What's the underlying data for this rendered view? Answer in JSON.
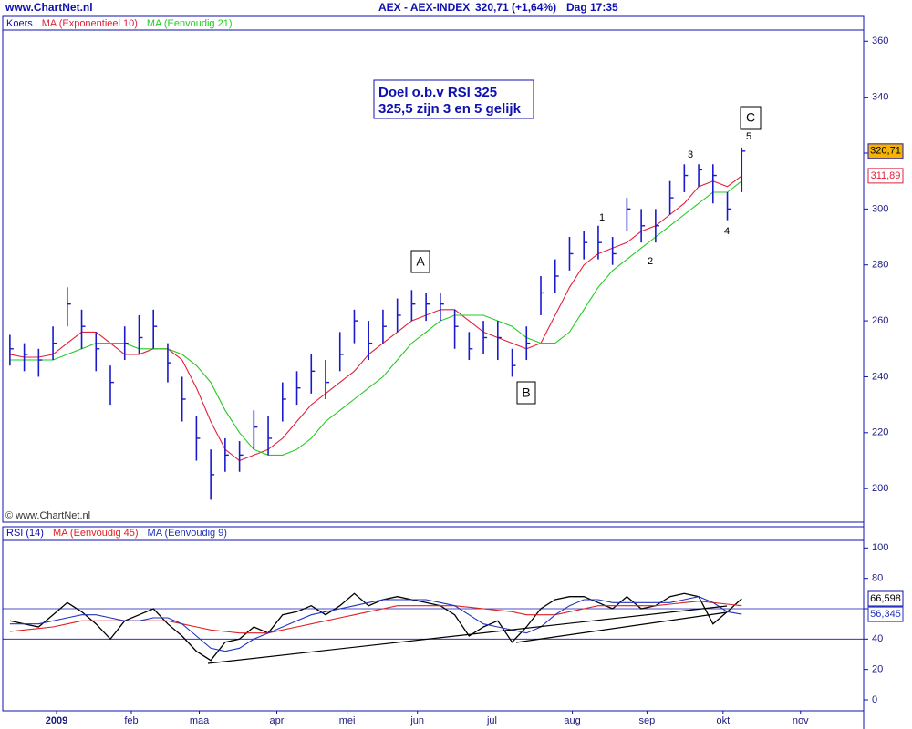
{
  "header": {
    "site": "www.ChartNet.nl",
    "copyright": "© www.ChartNet.nl"
  },
  "annotations": {
    "note": [
      "Doel o.b.v RSI 325",
      "325,5 zijn 3 en 5 gelijk"
    ],
    "waves": [
      "A",
      "B",
      "C",
      "1",
      "2",
      "3",
      "4",
      "5"
    ]
  },
  "chart_data": [
    {
      "type": "ohlc",
      "title": "AEX - AEX-INDEX",
      "subtitle": "320,71 (+1,64%)",
      "timeframe": "Dag 17:35",
      "x": [
        0,
        1,
        2,
        3,
        4,
        5,
        6,
        7,
        8,
        9,
        10,
        11,
        12,
        13,
        14,
        15,
        16,
        17,
        18,
        19,
        20,
        21,
        22,
        23,
        24,
        25,
        26,
        27,
        28,
        29,
        30,
        31,
        32,
        33,
        34,
        35,
        36,
        37,
        38,
        39,
        40,
        41,
        42,
        43,
        44,
        45,
        46,
        47,
        48,
        49,
        50,
        51
      ],
      "xlim": [
        -0.5,
        59.5
      ],
      "xticks": [
        {
          "value": 3.25,
          "label": "2009"
        },
        {
          "value": 8.46,
          "label": "feb"
        },
        {
          "value": 13.2,
          "label": "maa"
        },
        {
          "value": 18.6,
          "label": "apr"
        },
        {
          "value": 23.5,
          "label": "mei"
        },
        {
          "value": 28.4,
          "label": "jun"
        },
        {
          "value": 33.6,
          "label": "jul"
        },
        {
          "value": 39.2,
          "label": "aug"
        },
        {
          "value": 44.4,
          "label": "sep"
        },
        {
          "value": 49.7,
          "label": "okt"
        },
        {
          "value": 55.1,
          "label": "nov"
        }
      ],
      "ylim": [
        188,
        364
      ],
      "yticks": [
        200,
        220,
        240,
        260,
        280,
        300,
        320,
        340,
        360
      ],
      "series": [
        {
          "name": "Koers",
          "color": "#1a1acc",
          "values": [
            250,
            248,
            246,
            252,
            266,
            258,
            250,
            238,
            252,
            254,
            258,
            245,
            232,
            218,
            205,
            212,
            212,
            222,
            218,
            232,
            236,
            242,
            238,
            248,
            260,
            252,
            258,
            262,
            266,
            266,
            266,
            258,
            250,
            254,
            254,
            244,
            252,
            270,
            276,
            284,
            288,
            288,
            284,
            300,
            294,
            294,
            304,
            312,
            314,
            312,
            300,
            320.71
          ],
          "high": [
            255,
            252,
            250,
            258,
            272,
            264,
            256,
            244,
            258,
            262,
            264,
            252,
            240,
            226,
            214,
            218,
            217,
            228,
            226,
            238,
            242,
            248,
            246,
            256,
            264,
            260,
            264,
            268,
            271,
            270,
            270,
            264,
            256,
            260,
            260,
            250,
            258,
            276,
            282,
            290,
            292,
            294,
            290,
            304,
            300,
            300,
            310,
            316,
            316,
            316,
            306,
            322
          ],
          "low": [
            244,
            242,
            240,
            246,
            258,
            250,
            242,
            230,
            246,
            248,
            250,
            238,
            224,
            210,
            196,
            206,
            206,
            214,
            212,
            224,
            230,
            234,
            232,
            242,
            252,
            246,
            252,
            256,
            260,
            260,
            260,
            250,
            246,
            248,
            246,
            240,
            246,
            262,
            270,
            278,
            282,
            282,
            280,
            292,
            288,
            288,
            298,
            306,
            308,
            302,
            296,
            306
          ],
          "value_labels": [
            null,
            null,
            null,
            null,
            null,
            null,
            null,
            null,
            null,
            null,
            null,
            null,
            null,
            null,
            null,
            null,
            null,
            null,
            null,
            null,
            null,
            null,
            null,
            null,
            null,
            null,
            null,
            null,
            null,
            null,
            null,
            null,
            null,
            null,
            null,
            null,
            null,
            null,
            null,
            null,
            null,
            null,
            null,
            null,
            null,
            null,
            null,
            null,
            null,
            null,
            null,
            "320,71"
          ],
          "tag_fill": "#f5b400"
        },
        {
          "name": "MA (Exponentieel 10)",
          "color": "#e0203a",
          "values": [
            248,
            247,
            247,
            248,
            252,
            256,
            256,
            252,
            248,
            248,
            250,
            250,
            246,
            236,
            224,
            214,
            210,
            212,
            214,
            218,
            224,
            230,
            234,
            238,
            242,
            248,
            252,
            256,
            260,
            262,
            264,
            264,
            260,
            256,
            254,
            252,
            250,
            252,
            262,
            272,
            280,
            284,
            286,
            288,
            292,
            294,
            298,
            302,
            308,
            310,
            308,
            311.89
          ],
          "value_labels": [
            null,
            null,
            null,
            null,
            null,
            null,
            null,
            null,
            null,
            null,
            null,
            null,
            null,
            null,
            null,
            null,
            null,
            null,
            null,
            null,
            null,
            null,
            null,
            null,
            null,
            null,
            null,
            null,
            null,
            null,
            null,
            null,
            null,
            null,
            null,
            null,
            null,
            null,
            null,
            null,
            null,
            null,
            null,
            null,
            null,
            null,
            null,
            null,
            null,
            null,
            null,
            "311,89"
          ],
          "tag_fill": "#ffffff"
        },
        {
          "name": "MA (Eenvoudig 21)",
          "color": "#22cc22",
          "values": [
            246,
            246,
            246,
            246,
            248,
            250,
            252,
            252,
            252,
            250,
            250,
            250,
            248,
            244,
            238,
            228,
            220,
            214,
            212,
            212,
            214,
            218,
            224,
            228,
            232,
            236,
            240,
            246,
            252,
            256,
            260,
            262,
            262,
            262,
            260,
            258,
            254,
            252,
            252,
            256,
            264,
            272,
            278,
            282,
            286,
            290,
            294,
            298,
            302,
            306,
            306,
            310
          ]
        }
      ]
    },
    {
      "type": "line",
      "ylim": [
        -6,
        105
      ],
      "yticks": [
        0,
        20,
        40,
        60,
        80,
        100
      ],
      "levels": [
        60,
        40
      ],
      "series": [
        {
          "name": "RSI (14)",
          "color": "#000000",
          "values": [
            52,
            50,
            48,
            56,
            64,
            58,
            50,
            40,
            52,
            56,
            60,
            50,
            42,
            32,
            26,
            38,
            40,
            48,
            44,
            56,
            58,
            62,
            56,
            62,
            70,
            62,
            66,
            68,
            66,
            64,
            62,
            56,
            42,
            48,
            52,
            38,
            48,
            60,
            66,
            68,
            68,
            64,
            60,
            68,
            60,
            62,
            68,
            70,
            68,
            50,
            58,
            66.598
          ],
          "value_labels": [
            null,
            null,
            null,
            null,
            null,
            null,
            null,
            null,
            null,
            null,
            null,
            null,
            null,
            null,
            null,
            null,
            null,
            null,
            null,
            null,
            null,
            null,
            null,
            null,
            null,
            null,
            null,
            null,
            null,
            null,
            null,
            null,
            null,
            null,
            null,
            null,
            null,
            null,
            null,
            null,
            null,
            null,
            null,
            null,
            null,
            null,
            null,
            null,
            null,
            null,
            null,
            "66,598"
          ],
          "tag_fill": "#ffffff"
        },
        {
          "name": "MA (Eenvoudig 45)",
          "color": "#e02020",
          "values": [
            45,
            46,
            47,
            48,
            50,
            52,
            52,
            52,
            52,
            52,
            52,
            52,
            50,
            48,
            46,
            45,
            44,
            44,
            44,
            46,
            48,
            50,
            52,
            54,
            56,
            58,
            60,
            62,
            62,
            62,
            62,
            62,
            61,
            60,
            59,
            58,
            56,
            56,
            56,
            58,
            60,
            62,
            62,
            62,
            62,
            62,
            63,
            64,
            65,
            64,
            63,
            62
          ]
        },
        {
          "name": "MA (Eenvoudig 9)",
          "color": "#2233bb",
          "values": [
            50,
            50,
            50,
            52,
            54,
            56,
            56,
            54,
            52,
            52,
            54,
            54,
            50,
            42,
            34,
            32,
            34,
            40,
            44,
            48,
            52,
            56,
            58,
            60,
            62,
            64,
            66,
            66,
            66,
            66,
            64,
            62,
            56,
            50,
            48,
            46,
            44,
            48,
            56,
            62,
            66,
            66,
            64,
            64,
            64,
            64,
            64,
            66,
            68,
            64,
            58,
            56.345
          ],
          "value_labels": [
            null,
            null,
            null,
            null,
            null,
            null,
            null,
            null,
            null,
            null,
            null,
            null,
            null,
            null,
            null,
            null,
            null,
            null,
            null,
            null,
            null,
            null,
            null,
            null,
            null,
            null,
            null,
            null,
            null,
            null,
            null,
            null,
            null,
            null,
            null,
            null,
            null,
            null,
            null,
            null,
            null,
            null,
            null,
            null,
            null,
            null,
            null,
            null,
            null,
            null,
            null,
            "56,345"
          ],
          "tag_fill": "#ffffff"
        }
      ]
    }
  ]
}
